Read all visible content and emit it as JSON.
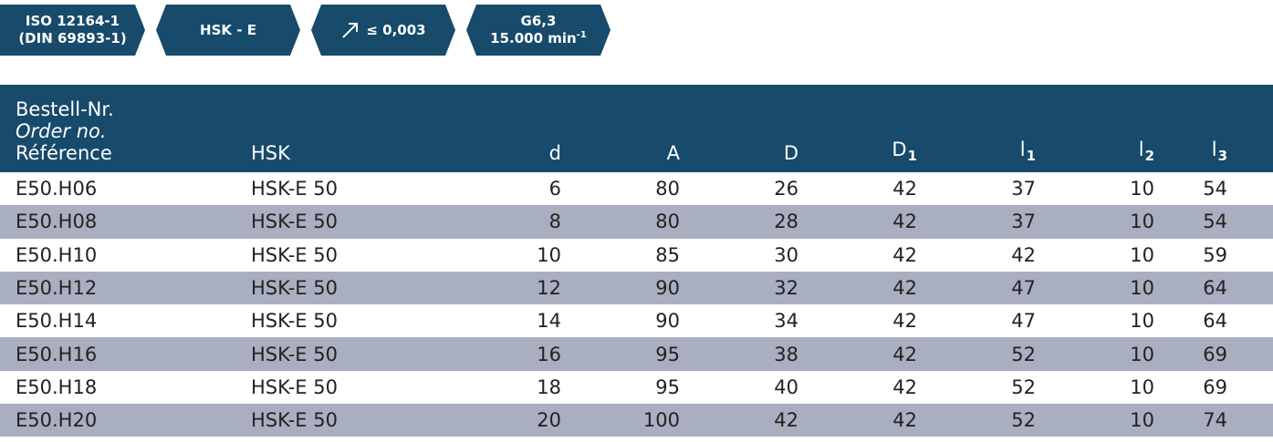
{
  "badges": {
    "standard_line1": "ISO 12164-1",
    "standard_line2": "(DIN 69893-1)",
    "interface": "HSK - E",
    "runout": "≤ 0,003",
    "balance_line1": "G6,3",
    "balance_line2": "15.000 min",
    "balance_exp": "-1"
  },
  "table": {
    "headers": {
      "order_de": "Bestell-Nr.",
      "order_en": "Order no.",
      "order_fr": "Référence",
      "hsk": "HSK",
      "d": "d",
      "A": "A",
      "D": "D",
      "D1": "D",
      "D1_sub": "1",
      "l1": "l",
      "l1_sub": "1",
      "l2": "l",
      "l2_sub": "2",
      "l3": "l",
      "l3_sub": "3"
    },
    "rows": [
      {
        "order": "E50.H06",
        "hsk": "HSK-E 50",
        "d": "6",
        "A": "80",
        "D": "26",
        "D1": "42",
        "l1": "37",
        "l2": "10",
        "l3": "54"
      },
      {
        "order": "E50.H08",
        "hsk": "HSK-E 50",
        "d": "8",
        "A": "80",
        "D": "28",
        "D1": "42",
        "l1": "37",
        "l2": "10",
        "l3": "54"
      },
      {
        "order": "E50.H10",
        "hsk": "HSK-E 50",
        "d": "10",
        "A": "85",
        "D": "30",
        "D1": "42",
        "l1": "42",
        "l2": "10",
        "l3": "59"
      },
      {
        "order": "E50.H12",
        "hsk": "HSK-E 50",
        "d": "12",
        "A": "90",
        "D": "32",
        "D1": "42",
        "l1": "47",
        "l2": "10",
        "l3": "64"
      },
      {
        "order": "E50.H14",
        "hsk": "HSK-E 50",
        "d": "14",
        "A": "90",
        "D": "34",
        "D1": "42",
        "l1": "47",
        "l2": "10",
        "l3": "64"
      },
      {
        "order": "E50.H16",
        "hsk": "HSK-E 50",
        "d": "16",
        "A": "95",
        "D": "38",
        "D1": "42",
        "l1": "52",
        "l2": "10",
        "l3": "69"
      },
      {
        "order": "E50.H18",
        "hsk": "HSK-E 50",
        "d": "18",
        "A": "95",
        "D": "40",
        "D1": "42",
        "l1": "52",
        "l2": "10",
        "l3": "69"
      },
      {
        "order": "E50.H20",
        "hsk": "HSK-E 50",
        "d": "20",
        "A": "100",
        "D": "42",
        "D1": "42",
        "l1": "52",
        "l2": "10",
        "l3": "74"
      }
    ]
  },
  "colors": {
    "header_blue": "#174a6b",
    "row_stripe": "#a9afc0"
  }
}
